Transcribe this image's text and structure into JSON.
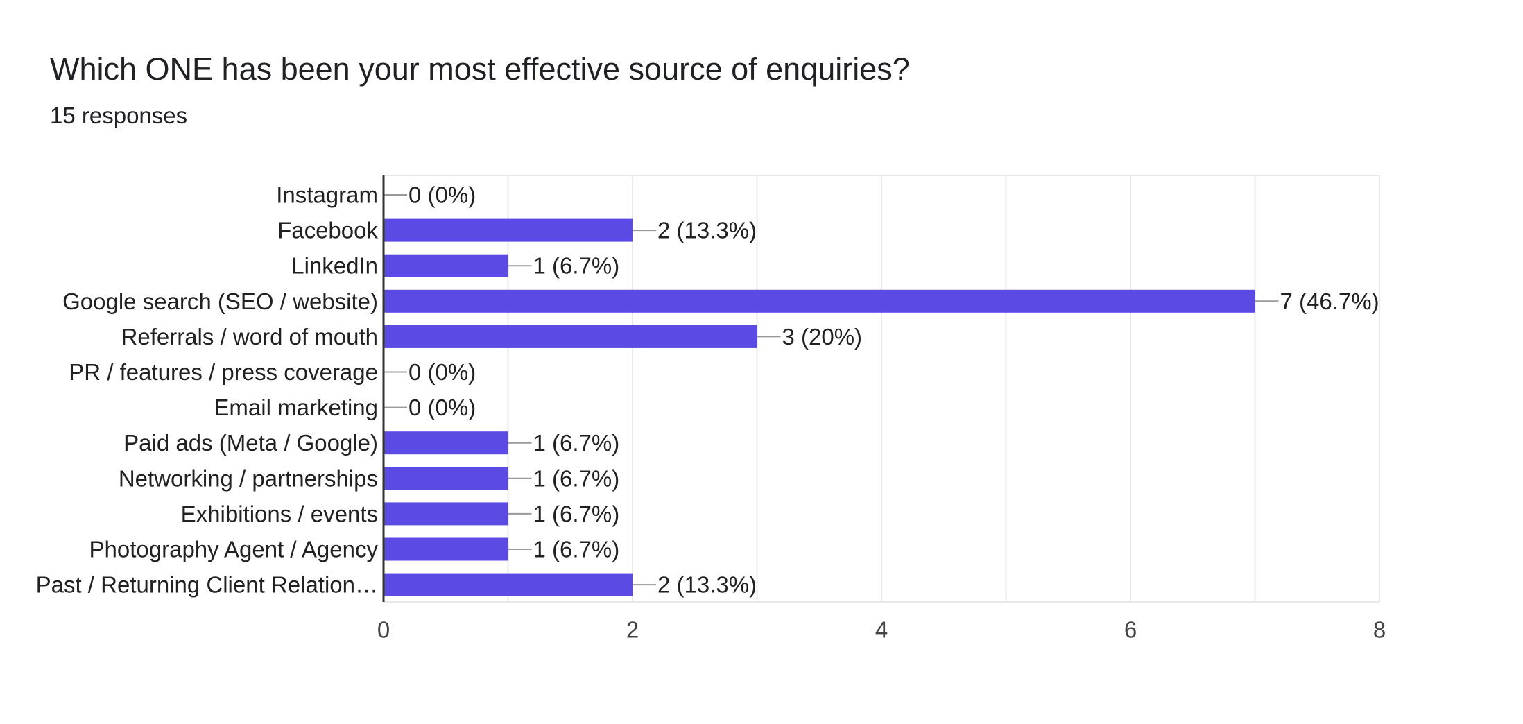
{
  "question": {
    "title": "Which ONE has been your most effective source of enquiries?",
    "responses": "15 responses"
  },
  "colors": {
    "bar": "#5b4ae4",
    "grid": "#e8e8e8",
    "axis": "#333333",
    "leader": "#999999",
    "text": "#212121",
    "tick": "#444444"
  },
  "chart_data": {
    "type": "bar",
    "orientation": "horizontal",
    "categories": [
      "Instagram",
      "Facebook",
      "LinkedIn",
      "Google search (SEO / website)",
      "Referrals / word of mouth",
      "PR / features / press coverage",
      "Email marketing",
      "Paid ads (Meta / Google)",
      "Networking / partnerships",
      "Exhibitions / events",
      "Photography Agent / Agency",
      "Past / Returning Client Relation…"
    ],
    "values": [
      0,
      2,
      1,
      7,
      3,
      0,
      0,
      1,
      1,
      1,
      1,
      2
    ],
    "data_labels": [
      "0 (0%)",
      "2 (13.3%)",
      "1 (6.7%)",
      "7 (46.7%)",
      "3 (20%)",
      "0 (0%)",
      "0 (0%)",
      "1 (6.7%)",
      "1 (6.7%)",
      "1 (6.7%)",
      "1 (6.7%)",
      "2 (13.3%)"
    ],
    "xlim": [
      0,
      8
    ],
    "xticks": [
      0,
      2,
      4,
      6,
      8
    ],
    "xtick_labels": [
      "0",
      "2",
      "4",
      "6",
      "8"
    ],
    "grid": true,
    "legend": "none"
  }
}
